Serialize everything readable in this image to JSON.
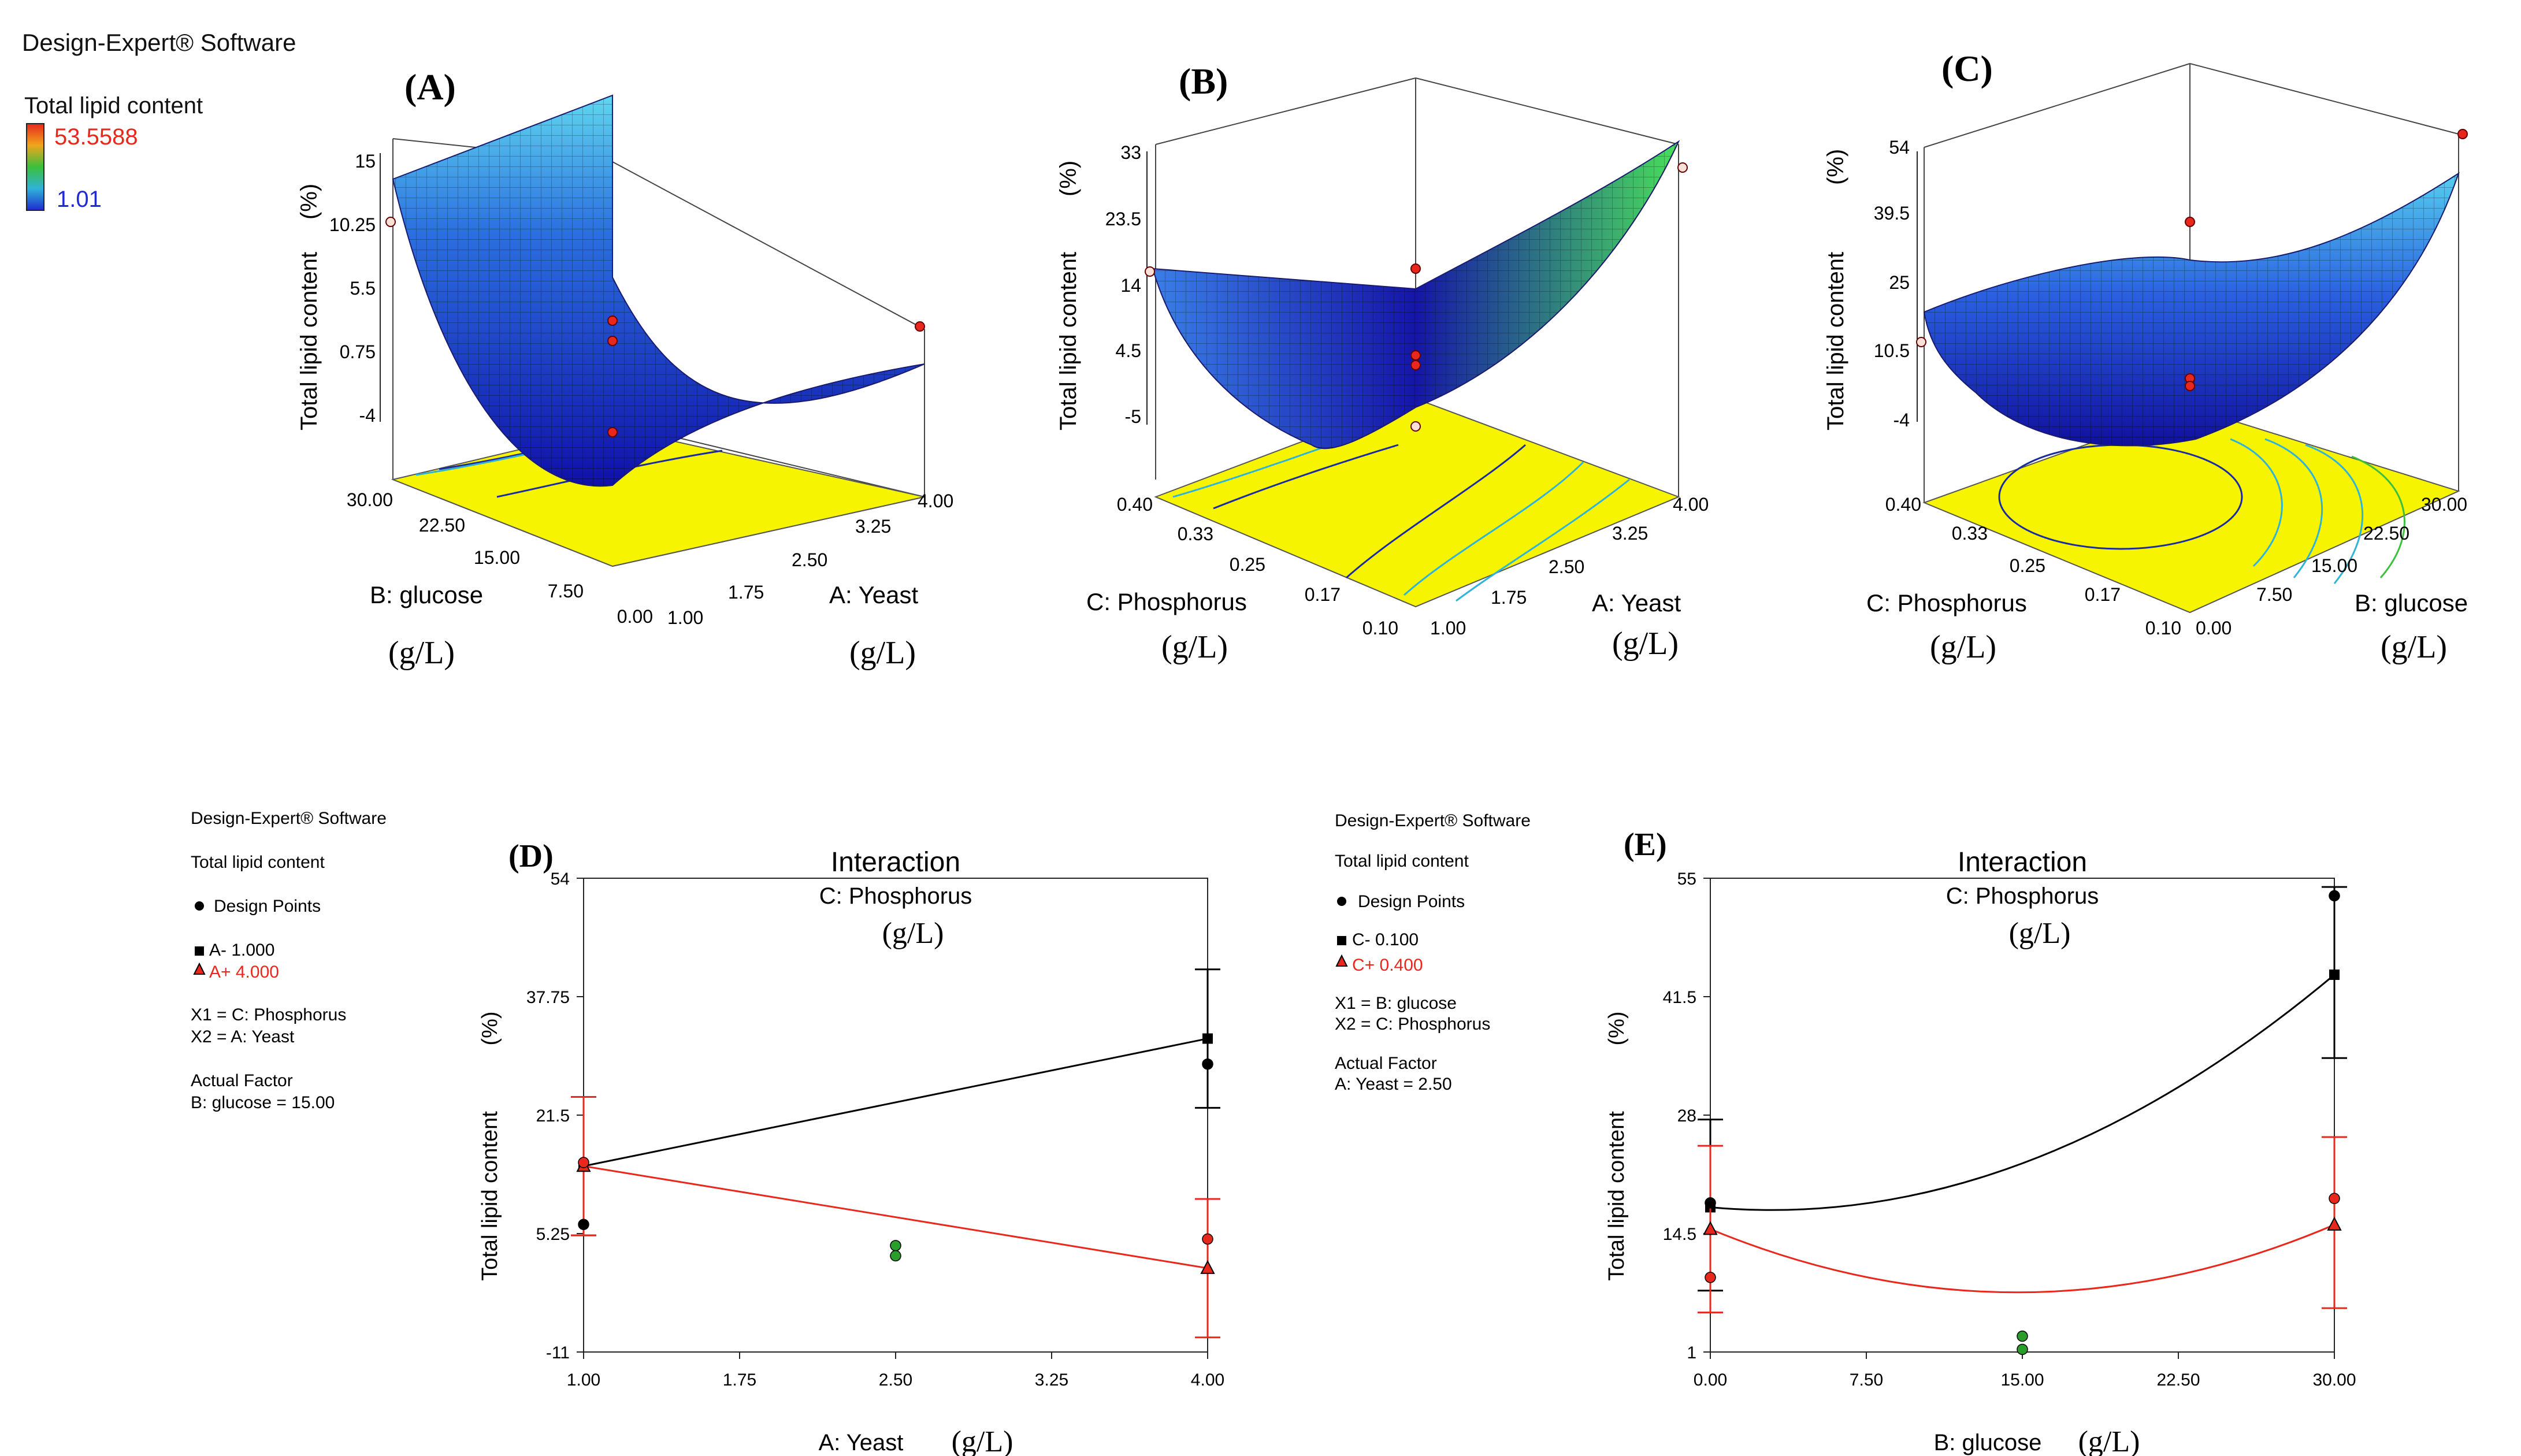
{
  "header": {
    "software": "Design-Expert® Software",
    "response": "Total lipid content"
  },
  "colorbar": {
    "max_label": "53.5588",
    "min_label": "1.01",
    "max_color": "#e8281c",
    "min_color": "#1f2bd0"
  },
  "units": {
    "gl": "(g/L)",
    "pct": "(%)"
  },
  "panels_3d": [
    {
      "letter": "(A)",
      "zlabel": "Total lipid content",
      "zticks": [
        "15",
        "10.25",
        "5.5",
        "0.75",
        "-4"
      ],
      "left_axis": {
        "label": "B: glucose",
        "ticks": [
          "30.00",
          "22.50",
          "15.00",
          "7.50",
          "0.00"
        ]
      },
      "right_axis": {
        "label": "A: Yeast",
        "ticks": [
          "1.00",
          "1.75",
          "2.50",
          "3.25",
          "4.00"
        ]
      }
    },
    {
      "letter": "(B)",
      "zlabel": "Total lipid content",
      "zticks": [
        "33",
        "23.5",
        "14",
        "4.5",
        "-5"
      ],
      "left_axis": {
        "label": "C: Phosphorus",
        "ticks": [
          "0.40",
          "0.33",
          "0.25",
          "0.17",
          "0.10"
        ]
      },
      "right_axis": {
        "label": "A: Yeast",
        "ticks": [
          "1.00",
          "1.75",
          "2.50",
          "3.25",
          "4.00"
        ]
      }
    },
    {
      "letter": "(C)",
      "zlabel": "Total lipid content",
      "zticks": [
        "54",
        "39.5",
        "25",
        "10.5",
        "-4"
      ],
      "left_axis": {
        "label": "C: Phosphorus",
        "ticks": [
          "0.40",
          "0.33",
          "0.25",
          "0.17",
          "0.10"
        ]
      },
      "right_axis": {
        "label": "B: glucose",
        "ticks": [
          "0.00",
          "7.50",
          "15.00",
          "22.50",
          "30.00"
        ]
      }
    }
  ],
  "legend_d": {
    "software": "Design-Expert® Software",
    "response": "Total lipid content",
    "design_points": "Design Points",
    "low": "A- 1.000",
    "high": "A+ 4.000",
    "x1": "X1 = C: Phosphorus",
    "x2": "X2 = A: Yeast",
    "actual_factor": "Actual Factor",
    "actual_value": "B: glucose = 15.00"
  },
  "legend_e": {
    "software": "Design-Expert® Software",
    "response": "Total lipid content",
    "design_points": "Design Points",
    "low": "C- 0.100",
    "high": "C+ 0.400",
    "x1": "X1 = B: glucose",
    "x2": "X2 = C: Phosphorus",
    "actual_factor": "Actual Factor",
    "actual_value": "A: Yeast = 2.50"
  },
  "chart_data": [
    {
      "type": "line",
      "panel": "(D)",
      "title": "Interaction",
      "subtitle": "C: Phosphorus",
      "xlabel": "A: Yeast",
      "ylabel": "Total lipid content",
      "xlim": [
        1.0,
        4.0
      ],
      "ylim": [
        -11,
        54
      ],
      "xticks": [
        "1.00",
        "1.75",
        "2.50",
        "3.25",
        "4.00"
      ],
      "yticks": [
        "54",
        "37.75",
        "21.5",
        "5.25",
        "-11"
      ],
      "series": [
        {
          "name": "C- 0.100",
          "color": "#000000",
          "marker": "square",
          "x": [
            1.0,
            4.0
          ],
          "y": [
            14.5,
            32.0
          ],
          "error_low": [
            5.0,
            22.5
          ],
          "error_high": [
            24.0,
            41.5
          ]
        },
        {
          "name": "C+ 0.400",
          "color": "#e8281c",
          "marker": "triangle",
          "x": [
            1.0,
            4.0
          ],
          "y": [
            14.5,
            0.5
          ],
          "error_low": [
            5.0,
            -9.0
          ],
          "error_high": [
            24.0,
            10.0
          ]
        }
      ],
      "design_points": [
        {
          "x": 1.0,
          "y": 6.5,
          "color": "#000000"
        },
        {
          "x": 1.0,
          "y": 15.0,
          "color": "#e8281c"
        },
        {
          "x": 4.0,
          "y": 28.5,
          "color": "#000000"
        },
        {
          "x": 4.0,
          "y": 4.5,
          "color": "#e8281c"
        },
        {
          "x": 2.5,
          "y": 3.6,
          "color": "#2a9d2a"
        },
        {
          "x": 2.5,
          "y": 2.2,
          "color": "#2a9d2a"
        }
      ]
    },
    {
      "type": "line",
      "panel": "(E)",
      "title": "Interaction",
      "subtitle": "C: Phosphorus",
      "xlabel": "B: glucose",
      "ylabel": "Total lipid content",
      "xlim": [
        0,
        30
      ],
      "ylim": [
        1,
        55
      ],
      "xticks": [
        "0.00",
        "7.50",
        "15.00",
        "22.50",
        "30.00"
      ],
      "yticks": [
        "55",
        "41.5",
        "28",
        "14.5",
        "1"
      ],
      "series": [
        {
          "name": "C- 0.100",
          "color": "#000000",
          "marker": "square",
          "x": [
            0,
            15,
            30
          ],
          "y": [
            17.5,
            22.5,
            44.0
          ],
          "marker_x": [
            0,
            30
          ],
          "marker_y": [
            17.5,
            44.0
          ],
          "error_low": [
            8.0,
            34.5
          ],
          "error_high": [
            27.5,
            54.0
          ]
        },
        {
          "name": "C+ 0.400",
          "color": "#e8281c",
          "marker": "triangle",
          "x": [
            0,
            15,
            30
          ],
          "y": [
            15.0,
            7.8,
            15.5
          ],
          "marker_x": [
            0,
            30
          ],
          "marker_y": [
            15.0,
            15.5
          ],
          "error_low": [
            5.5,
            6.0
          ],
          "error_high": [
            24.5,
            25.5
          ]
        }
      ],
      "design_points": [
        {
          "x": 0,
          "y": 18.0,
          "color": "#000000"
        },
        {
          "x": 0,
          "y": 9.5,
          "color": "#e8281c"
        },
        {
          "x": 30,
          "y": 53.0,
          "color": "#000000"
        },
        {
          "x": 30,
          "y": 18.5,
          "color": "#e8281c"
        },
        {
          "x": 15,
          "y": 2.8,
          "color": "#2a9d2a"
        },
        {
          "x": 15,
          "y": 1.3,
          "color": "#2a9d2a"
        }
      ]
    }
  ]
}
